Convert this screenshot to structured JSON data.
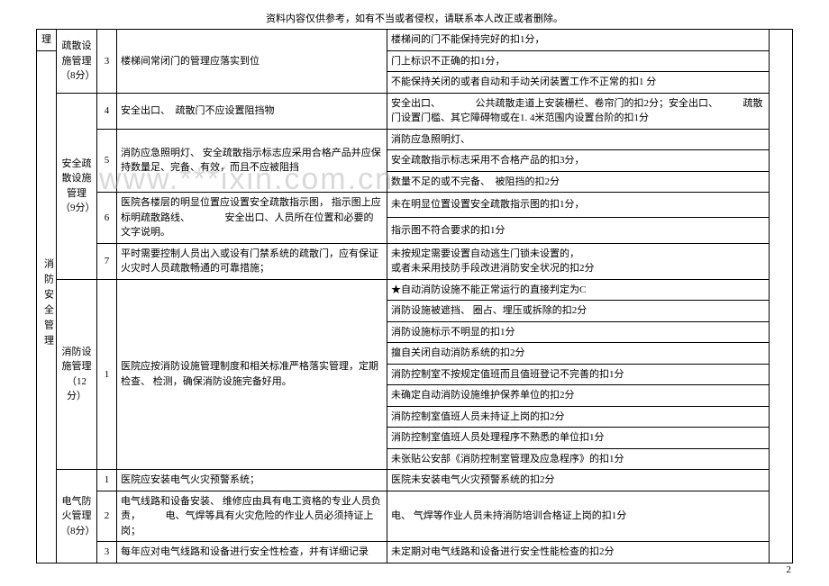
{
  "header_note": "资料内容仅供参考，如有不当或者侵权，请联系本人改正或者删除。",
  "watermark": "www.***ixin.com.cn",
  "page_number": "2",
  "col_a_top": "理",
  "col_a_main": "消防安全管理",
  "sections": {
    "s0": {
      "label": "疏散设施管理（8分）"
    },
    "s1": {
      "label": "安全疏散设施管理（9分）"
    },
    "s2": {
      "label": "消防设施管理（12分）"
    },
    "s3": {
      "label": "电气防火管理（8分）"
    }
  },
  "rows": {
    "r1": {
      "no": "3",
      "req": "楼梯间常闭门的管理应落实到位",
      "crit": [
        "楼梯间的门不能保持完好的扣1分，",
        "门上标识不正确的扣1分，",
        "不能保持关闭的或者自动和手动关闭装置工作不正常的扣1 分"
      ]
    },
    "r2": {
      "no": "4",
      "req": "安全出口、　疏散门不应设置阻挡物",
      "crit": [
        "安全出口、　　　　公共疏散走道上安装栅栏、卷帘门的扣2分；安全出口、　　　疏散门设置门槛、其它障碍物或在1. 4米范围内设置台阶的扣1分"
      ]
    },
    "r3": {
      "no": "5",
      "req": "消防应急照明灯、\n安全疏散指示标志应采用合格产品并应保持数量足、完备、有效，而且不应被阻挡",
      "crit": [
        "消防应急照明灯、",
        "安全疏散指示标志采用不合格产品的扣3分，",
        "数量不足的或不完备、　被阻挡的扣2分"
      ]
    },
    "r4": {
      "no": "6",
      "req": "医院各楼层的明显位置应设置安全疏散指示图，\n指示图上应标明疏散路线、　　　　安全出口、人员所在位置和必要的文字说明。",
      "crit": [
        "未在明显位置设置安全疏散指示图的扣1分，",
        "指示图不符合要求的扣1分"
      ]
    },
    "r5": {
      "no": "7",
      "req": "平时需要控制人员出入或设有门禁系统的疏散门，应有保证火灾时人员疏散畅通的可靠措施；",
      "crit": [
        "未按规定需要设置自动逃生门锁未设置的，",
        "或者未采用技防手段改进消防安全状况的扣2分"
      ]
    },
    "r6": {
      "no": "1",
      "req": "医院应按消防设施管理制度和相关标准严格落实管理，定期检查、 检测，确保消防设施完备好用。",
      "crit": [
        "★自动消防设施不能正常运行的直接判定为C",
        "消防设施被遮挡、 圈占、埋压或拆除的扣2分",
        "消防设施标示不明显的扣1分",
        "擅自关闭自动消防系统的扣2分",
        "消防控制室不按规定值班而且值班登记不完善的扣1分",
        "未确定自动消防设施维护保养单位的扣2分",
        "消防控制室值班人员未持证上岗的扣2分",
        "消防控制室值班人员处理程序不熟悉的单位扣1分",
        "未张贴公安部《消防控制室管理及应急程序》的扣1分"
      ]
    },
    "r7": {
      "no": "1",
      "req": "医院应安装电气火灾预警系统；",
      "crit": [
        "医院未安装电气火灾预警系统的扣2分"
      ]
    },
    "r8": {
      "no": "2",
      "req": "电气线路和设备安装、\n维修应由具有电工资格的专业人员负责，　　　电、气焊等具有火灾危险的作业人员必须持证上岗；",
      "crit": [
        "电、 气焊等作业人员未持消防培训合格证上岗的扣1分"
      ]
    },
    "r9": {
      "no": "3",
      "req": "每年应对电气线路和设备进行安全性检查，并有详细记录",
      "crit": [
        "未定期对电气线路和设备进行安全性能检查的扣2分"
      ]
    }
  },
  "style": {
    "font_size_pt": 11,
    "border_color": "#000000",
    "background": "#ffffff",
    "text_color": "#000000",
    "watermark_color": "rgba(170,170,170,0.45)"
  }
}
